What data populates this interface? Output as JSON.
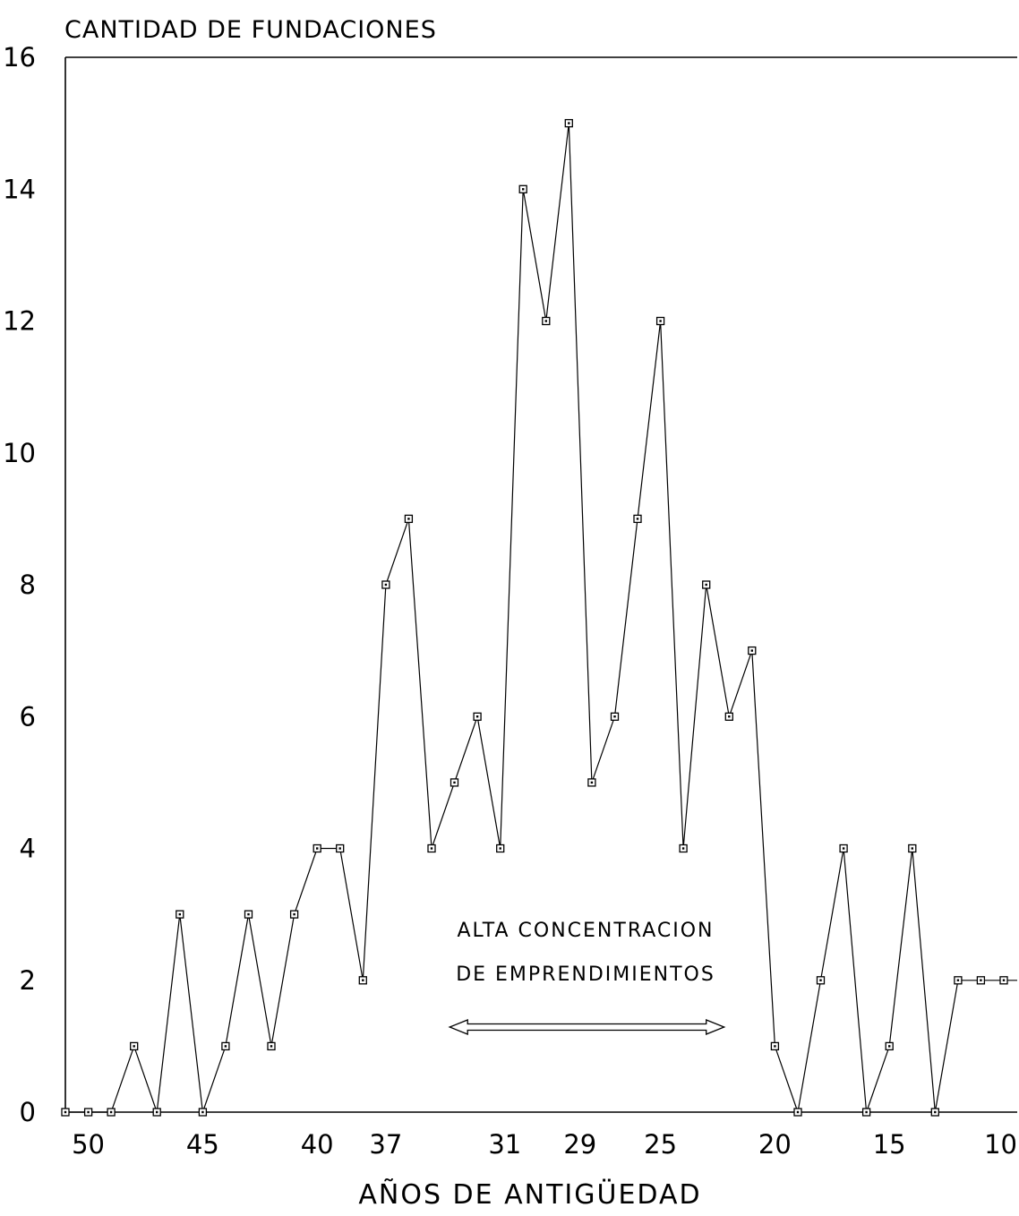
{
  "chart_data": {
    "type": "line",
    "title": "CANTIDAD DE FUNDACIONES",
    "xlabel": "AÑOS DE ANTIGÜEDAD",
    "ylabel": "",
    "x_ticks": [
      "50",
      "45",
      "40",
      "37",
      "31",
      "29",
      "25",
      "20",
      "15",
      "10"
    ],
    "x_tick_values": [
      50,
      45,
      40,
      37,
      31,
      29,
      25,
      20,
      15,
      10
    ],
    "y_ticks": [
      "0",
      "2",
      "4",
      "6",
      "8",
      "10",
      "12",
      "14",
      "16"
    ],
    "xlim": [
      51,
      10
    ],
    "ylim": [
      0,
      16
    ],
    "grid": false,
    "x": [
      51,
      50,
      49,
      48,
      47,
      46,
      45,
      44,
      43,
      42,
      41,
      40,
      39,
      38,
      37,
      36,
      35,
      34,
      33,
      32,
      31,
      30,
      29,
      28,
      27,
      26,
      25,
      24,
      23,
      22,
      21,
      20,
      19,
      18,
      17,
      16,
      15,
      14,
      13,
      12,
      11,
      10
    ],
    "values": [
      0,
      0,
      0,
      1,
      0,
      3,
      0,
      1,
      3,
      1,
      3,
      4,
      4,
      2,
      8,
      9,
      4,
      5,
      6,
      4,
      14,
      12,
      15,
      5,
      6,
      9,
      12,
      4,
      8,
      6,
      7,
      1,
      0,
      2,
      4,
      0,
      1,
      4,
      0,
      2,
      2,
      2
    ],
    "annotation": {
      "line1": "ALTA CONCENTRACION",
      "line2": "DE EMPRENDIMIENTOS",
      "span": [
        31,
        23
      ]
    }
  }
}
